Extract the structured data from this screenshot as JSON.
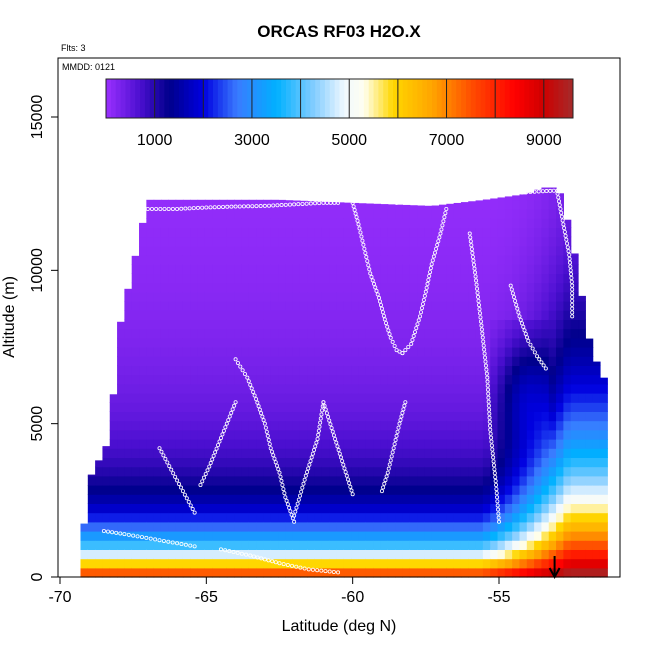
{
  "chart_data": {
    "type": "heatmap",
    "title": "ORCAS RF03 H2O.X",
    "subtitle": "Flts: 3",
    "annotation": "MMDD: 0121",
    "xlabel": "Latitude (deg N)",
    "ylabel": "Altitude (m)",
    "xlim": [
      -70,
      -51.5
    ],
    "ylim": [
      0,
      16500
    ],
    "x_ticks": [
      -70,
      -65,
      -60,
      -55
    ],
    "x_tick_labels": [
      "-70",
      "-65",
      "-60",
      "-55"
    ],
    "y_ticks": [
      0,
      5000,
      10000,
      15000
    ],
    "y_tick_labels": [
      "0",
      "5000",
      "10000",
      "15000"
    ],
    "colorbar": {
      "range": [
        0,
        9600
      ],
      "ticks": [
        1000,
        3000,
        5000,
        7000,
        9000
      ],
      "tick_labels": [
        "1000",
        "3000",
        "5000",
        "7000",
        "9000"
      ],
      "divisions": [
        0,
        1000,
        2000,
        3000,
        4000,
        5000,
        6000,
        7000,
        8000,
        9000,
        9600
      ]
    },
    "color_stops": [
      [
        0,
        "#9b30ff"
      ],
      [
        700,
        "#4b0fd0"
      ],
      [
        1300,
        "#00008b"
      ],
      [
        2000,
        "#0000e0"
      ],
      [
        2700,
        "#3a7bff"
      ],
      [
        3500,
        "#00b0ff"
      ],
      [
        4300,
        "#87ceff"
      ],
      [
        4900,
        "#f0f8ff"
      ],
      [
        5300,
        "#fffff0"
      ],
      [
        5900,
        "#ffd700"
      ],
      [
        6700,
        "#ffa500"
      ],
      [
        7600,
        "#ff4500"
      ],
      [
        8400,
        "#ff0000"
      ],
      [
        9000,
        "#cd0000"
      ],
      [
        9600,
        "#a52a2a"
      ]
    ],
    "arrow_latitude": -53.1,
    "field_envelope": {
      "lat": [
        -69.3,
        -69.0,
        -68.3,
        -68.0,
        -67.0,
        -62.5,
        -60.0,
        -57.3,
        -55.5,
        -54.0,
        -53.5,
        -53.0,
        -52.8,
        -52.3,
        -52.0,
        -51.5
      ],
      "top": [
        700,
        3200,
        4500,
        8000,
        12300,
        12300,
        12200,
        12100,
        12300,
        12500,
        12700,
        12700,
        12200,
        10000,
        8000,
        6500
      ]
    },
    "flight_track_segments": [
      {
        "lat": [
          -67.0,
          -66.0,
          -65.0,
          -64.0,
          -63.0,
          -62.0,
          -61.0,
          -60.5
        ],
        "alt": [
          12000,
          12000,
          12050,
          12080,
          12100,
          12150,
          12200,
          12200
        ]
      },
      {
        "lat": [
          -58.5,
          -57.5,
          -56.5,
          -55.5,
          -54.5,
          -53.5,
          -53.0
        ],
        "alt": [
          12200,
          12300,
          12380,
          12450,
          12520,
          12580,
          12600
        ]
      },
      {
        "lat": [
          -60.0,
          -59.8,
          -59.6,
          -59.4,
          -59.1,
          -58.9,
          -58.7,
          -58.5,
          -58.3
        ],
        "alt": [
          12200,
          11500,
          10700,
          9900,
          9100,
          8400,
          7800,
          7400,
          7300
        ]
      },
      {
        "lat": [
          -58.3,
          -58.0,
          -57.7,
          -57.5,
          -57.3,
          -57.0,
          -56.8
        ],
        "alt": [
          7300,
          7600,
          8500,
          9300,
          10200,
          11200,
          12000
        ]
      },
      {
        "lat": [
          -56.0,
          -55.8,
          -55.6,
          -55.4,
          -55.3,
          -55.1,
          -55.0
        ],
        "alt": [
          11200,
          9800,
          8200,
          6500,
          4800,
          3000,
          1800
        ]
      },
      {
        "lat": [
          -54.6,
          -54.3,
          -54.0,
          -53.7,
          -53.4
        ],
        "alt": [
          9500,
          8500,
          7700,
          7200,
          6800
        ]
      },
      {
        "lat": [
          -53.0,
          -52.8,
          -52.6,
          -52.5,
          -52.5
        ],
        "alt": [
          12500,
          11500,
          10500,
          9500,
          8500
        ]
      },
      {
        "lat": [
          -64.0,
          -63.6,
          -63.3,
          -63.0,
          -62.8,
          -62.5,
          -62.3,
          -62.0
        ],
        "alt": [
          7100,
          6500,
          5800,
          5000,
          4200,
          3400,
          2600,
          1800
        ]
      },
      {
        "lat": [
          -65.2,
          -64.9,
          -64.6,
          -64.3,
          -64.0
        ],
        "alt": [
          3000,
          3600,
          4300,
          5000,
          5700
        ]
      },
      {
        "lat": [
          -61.0,
          -60.8,
          -60.6,
          -60.4,
          -60.2,
          -60.0
        ],
        "alt": [
          5700,
          5100,
          4500,
          3900,
          3300,
          2700
        ]
      },
      {
        "lat": [
          -62.0,
          -61.6,
          -61.2,
          -61.0
        ],
        "alt": [
          2000,
          3300,
          4500,
          5700
        ]
      },
      {
        "lat": [
          -59.0,
          -58.8,
          -58.6,
          -58.4,
          -58.2
        ],
        "alt": [
          2800,
          3400,
          4200,
          5000,
          5700
        ]
      },
      {
        "lat": [
          -68.5,
          -67.8,
          -67.2,
          -66.6,
          -66.0,
          -65.4
        ],
        "alt": [
          1500,
          1400,
          1300,
          1200,
          1100,
          1000
        ]
      },
      {
        "lat": [
          -64.5,
          -63.5,
          -62.5,
          -61.5,
          -60.5
        ],
        "alt": [
          900,
          700,
          450,
          250,
          150
        ]
      },
      {
        "lat": [
          -66.6,
          -66.2,
          -65.8,
          -65.4
        ],
        "alt": [
          4200,
          3500,
          2800,
          2100
        ]
      }
    ]
  }
}
